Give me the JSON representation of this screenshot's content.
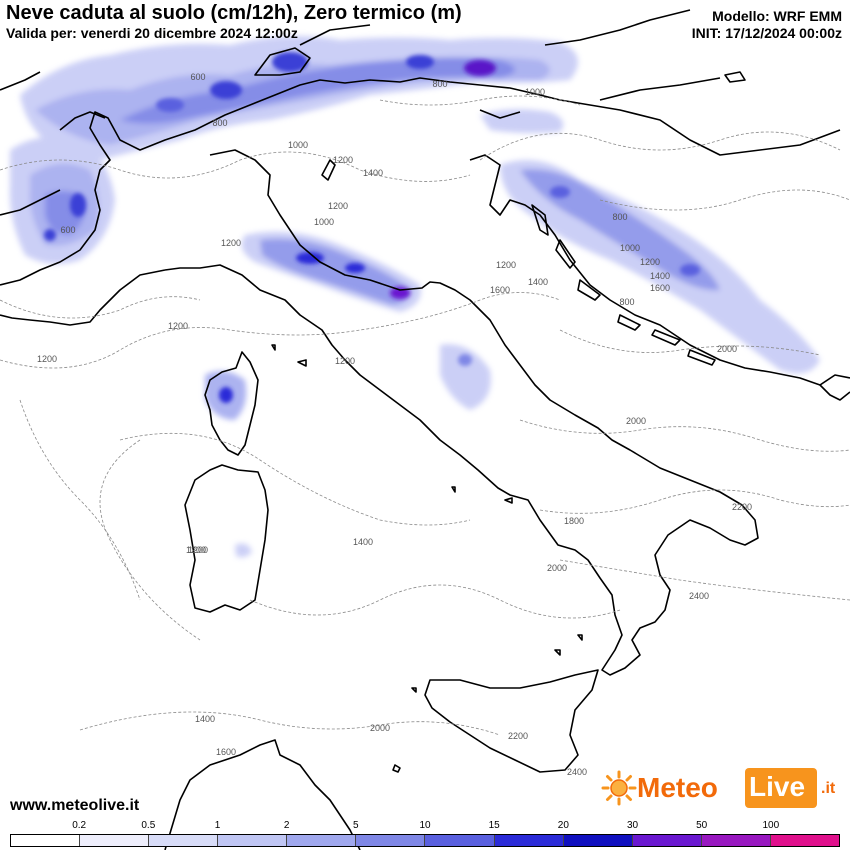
{
  "title": "Neve caduta al suolo (cm/12h), Zero termico (m)",
  "valid": "Valida per: venerdi 20 dicembre 2024 12:00z",
  "model": "Modello: WRF EMM",
  "init": "INIT: 17/12/2024 00:00z",
  "website": "www.meteolive.it",
  "logo": {
    "meteo": "Meteo",
    "live": "Live",
    "tld": ".it",
    "icon": "sun-icon"
  },
  "legend": {
    "labels": [
      "0.2",
      "0.5",
      "1",
      "2",
      "5",
      "10",
      "15",
      "20",
      "30",
      "50",
      "100"
    ],
    "colors": [
      "#ffffff",
      "#eeeefc",
      "#d8dcf8",
      "#c0c6f4",
      "#a0a8ee",
      "#7f87e6",
      "#5a60df",
      "#2b2bd8",
      "#1010c0",
      "#6a18d0",
      "#9818c0",
      "#e0108c"
    ]
  },
  "contour_labels": [
    {
      "text": "600"
    },
    {
      "text": "800"
    },
    {
      "text": "800"
    },
    {
      "text": "1000"
    },
    {
      "text": "1000"
    },
    {
      "text": "1200"
    },
    {
      "text": "1400"
    },
    {
      "text": "1200"
    },
    {
      "text": "1000"
    },
    {
      "text": "600"
    },
    {
      "text": "1200"
    },
    {
      "text": "1200"
    },
    {
      "text": "1200"
    },
    {
      "text": "1600"
    },
    {
      "text": "1400"
    },
    {
      "text": "800"
    },
    {
      "text": "1000"
    },
    {
      "text": "1200"
    },
    {
      "text": "1400"
    },
    {
      "text": "1600"
    },
    {
      "text": "800"
    },
    {
      "text": "1200"
    },
    {
      "text": "1200"
    },
    {
      "text": "1200"
    },
    {
      "text": "2000"
    },
    {
      "text": "2000"
    },
    {
      "text": "1800"
    },
    {
      "text": "2200"
    },
    {
      "text": "1400"
    },
    {
      "text": "1200"
    },
    {
      "text": "2000"
    },
    {
      "text": "2400"
    },
    {
      "text": "1400"
    },
    {
      "text": "2000"
    },
    {
      "text": "1600"
    },
    {
      "text": "2200"
    },
    {
      "text": "2400"
    }
  ]
}
